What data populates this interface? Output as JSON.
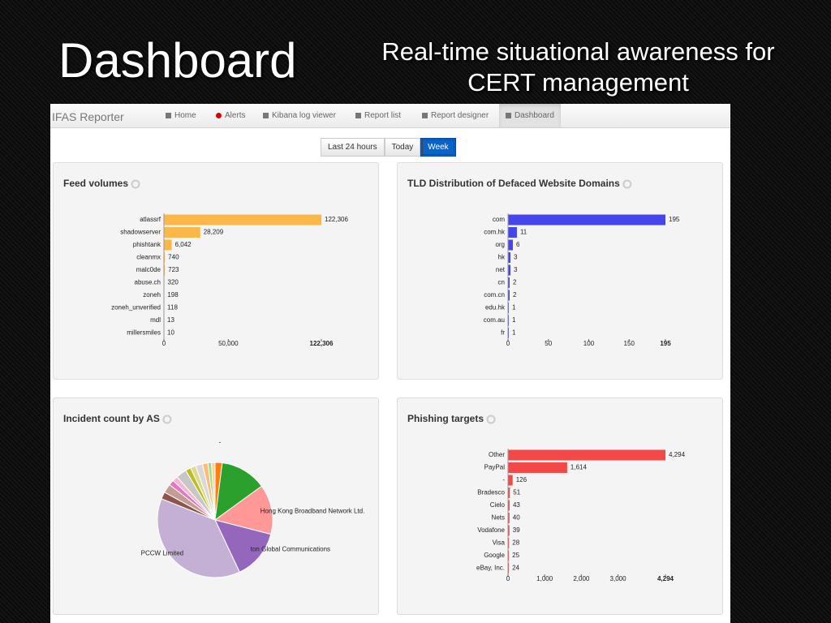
{
  "slide": {
    "title": "Dashboard",
    "subtitle": "Real-time situational awareness for CERT management"
  },
  "app": {
    "brand": "IFAS Reporter",
    "nav": [
      "Home",
      "Alerts",
      "Kibana log viewer",
      "Report list",
      "Report designer",
      "Dashboard"
    ],
    "time_range": [
      "Last 24 hours",
      "Today",
      "Week"
    ]
  },
  "chart_data": [
    {
      "type": "hbar",
      "title": "Feed volumes",
      "categories": [
        "atlassrf",
        "shadowserver",
        "phishtank",
        "cleanmx",
        "malc0de",
        "abuse.ch",
        "zoneh",
        "zoneh_unverified",
        "mdl",
        "millersmiles"
      ],
      "values": [
        122306,
        28209,
        6042,
        740,
        723,
        320,
        198,
        118,
        13,
        10
      ],
      "value_labels": [
        "122,306",
        "28,209",
        "6,042",
        "740",
        "723",
        "320",
        "198",
        "118",
        "13",
        "10"
      ],
      "color": "#fbb848",
      "xlim": [
        0,
        122306
      ],
      "xticks": [
        0,
        {
          "value": 50000,
          "label": "50,000"
        },
        {
          "value": 122306,
          "label": "122,306"
        }
      ]
    },
    {
      "type": "hbar",
      "title": "TLD Distribution of Defaced Website Domains",
      "categories": [
        "com",
        "com.hk",
        "org",
        "hk",
        "net",
        "cn",
        "com.cn",
        "edu.hk",
        "com.au",
        "fr"
      ],
      "values": [
        195,
        11,
        6,
        3,
        3,
        2,
        2,
        1,
        1,
        1
      ],
      "color": "#4545ee",
      "xlim": [
        0,
        195
      ],
      "xticks": [
        0,
        50,
        100,
        150,
        195
      ]
    },
    {
      "type": "pie",
      "title": "Incident count by AS",
      "categories": [
        "-",
        null,
        "Hong Kong Broadband Network Ltd.",
        "ton Global Communications",
        "PCCW Limited",
        null,
        null,
        null,
        null,
        null,
        null,
        null,
        null,
        null,
        null,
        null
      ],
      "values": [
        2,
        13,
        14,
        14,
        38,
        2,
        2.5,
        1.5,
        1.5,
        3,
        1.5,
        1.5,
        2,
        1.5,
        1,
        1
      ],
      "colors": [
        "#ff7f0e",
        "#2ca02c",
        "#ff9896",
        "#9467bd",
        "#c5b0d5",
        "#8c564b",
        "#c49c94",
        "#e377c2",
        "#f7b6d2",
        "#c7c7c7",
        "#bcbd22",
        "#dbdb8d",
        "#d9d9d9",
        "#ffbb78",
        "#98df8a",
        "#fdd0a2"
      ]
    },
    {
      "type": "hbar",
      "title": "Phishing targets",
      "categories": [
        "Other",
        "PayPal",
        "-",
        "Bradesco",
        "Cielo",
        "Nets",
        "Vodafone",
        "Visa",
        "Google",
        "eBay, Inc."
      ],
      "values": [
        4294,
        1614,
        126,
        51,
        43,
        40,
        39,
        28,
        25,
        24
      ],
      "value_labels": [
        "4,294",
        "1,614",
        "126",
        "51",
        "43",
        "40",
        "39",
        "28",
        "25",
        "24"
      ],
      "color": "#f24848",
      "xlim": [
        0,
        4294
      ],
      "xticks": [
        0,
        {
          "value": 1000,
          "label": "1,000"
        },
        {
          "value": 2000,
          "label": "2,000"
        },
        {
          "value": 3000,
          "label": "3,000"
        },
        {
          "value": 4294,
          "label": "4,294"
        }
      ]
    }
  ]
}
